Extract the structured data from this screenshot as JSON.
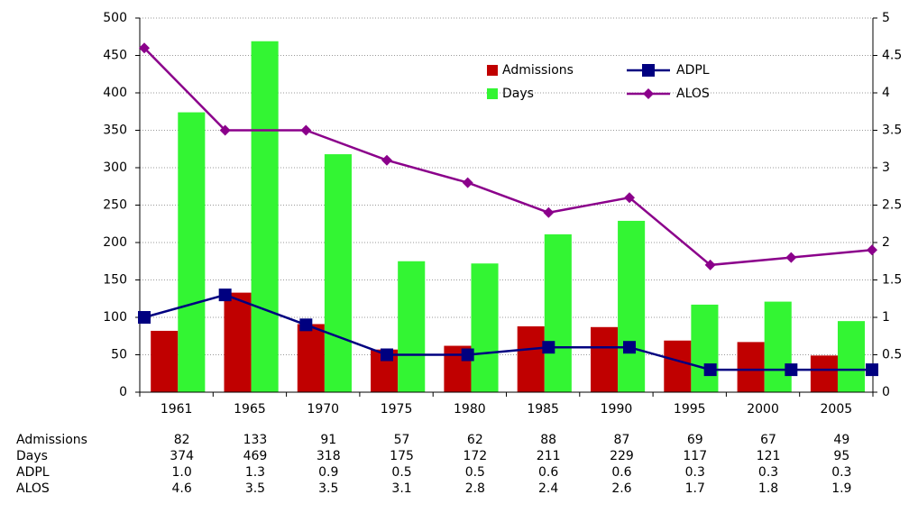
{
  "chart_data": {
    "type": "bar",
    "categories": [
      "1961",
      "1965",
      "1970",
      "1975",
      "1980",
      "1985",
      "1990",
      "1995",
      "2000",
      "2005"
    ],
    "series": [
      {
        "name": "Admissions",
        "type": "bar",
        "axis": "y",
        "color": "#c00000",
        "values": [
          82,
          133,
          91,
          57,
          62,
          88,
          87,
          69,
          67,
          49
        ]
      },
      {
        "name": "Days",
        "type": "bar",
        "axis": "y",
        "color": "#33f533",
        "values": [
          374,
          469,
          318,
          175,
          172,
          211,
          229,
          117,
          121,
          95
        ]
      },
      {
        "name": "ADPL",
        "type": "line",
        "axis": "y2",
        "color": "#000080",
        "marker": "square",
        "values": [
          1.0,
          1.3,
          0.9,
          0.5,
          0.5,
          0.6,
          0.6,
          0.3,
          0.3,
          0.3
        ],
        "value_labels": [
          "1.0",
          "1.3",
          "0.9",
          "0.5",
          "0.5",
          "0.6",
          "0.6",
          "0.3",
          "0.3",
          "0.3"
        ]
      },
      {
        "name": "ALOS",
        "type": "line",
        "axis": "y2",
        "color": "#8b008b",
        "marker": "diamond",
        "values": [
          4.6,
          3.5,
          3.5,
          3.1,
          2.8,
          2.4,
          2.6,
          1.7,
          1.8,
          1.9
        ]
      }
    ],
    "ylim": [
      0,
      500
    ],
    "yticks": [
      0,
      50,
      100,
      150,
      200,
      250,
      300,
      350,
      400,
      450,
      500
    ],
    "y2lim": [
      0,
      5
    ],
    "y2ticks": [
      0,
      0.5,
      1,
      1.5,
      2,
      2.5,
      3,
      3.5,
      4,
      4.5,
      5
    ],
    "grid": true,
    "legend": "top",
    "data_table": true
  }
}
